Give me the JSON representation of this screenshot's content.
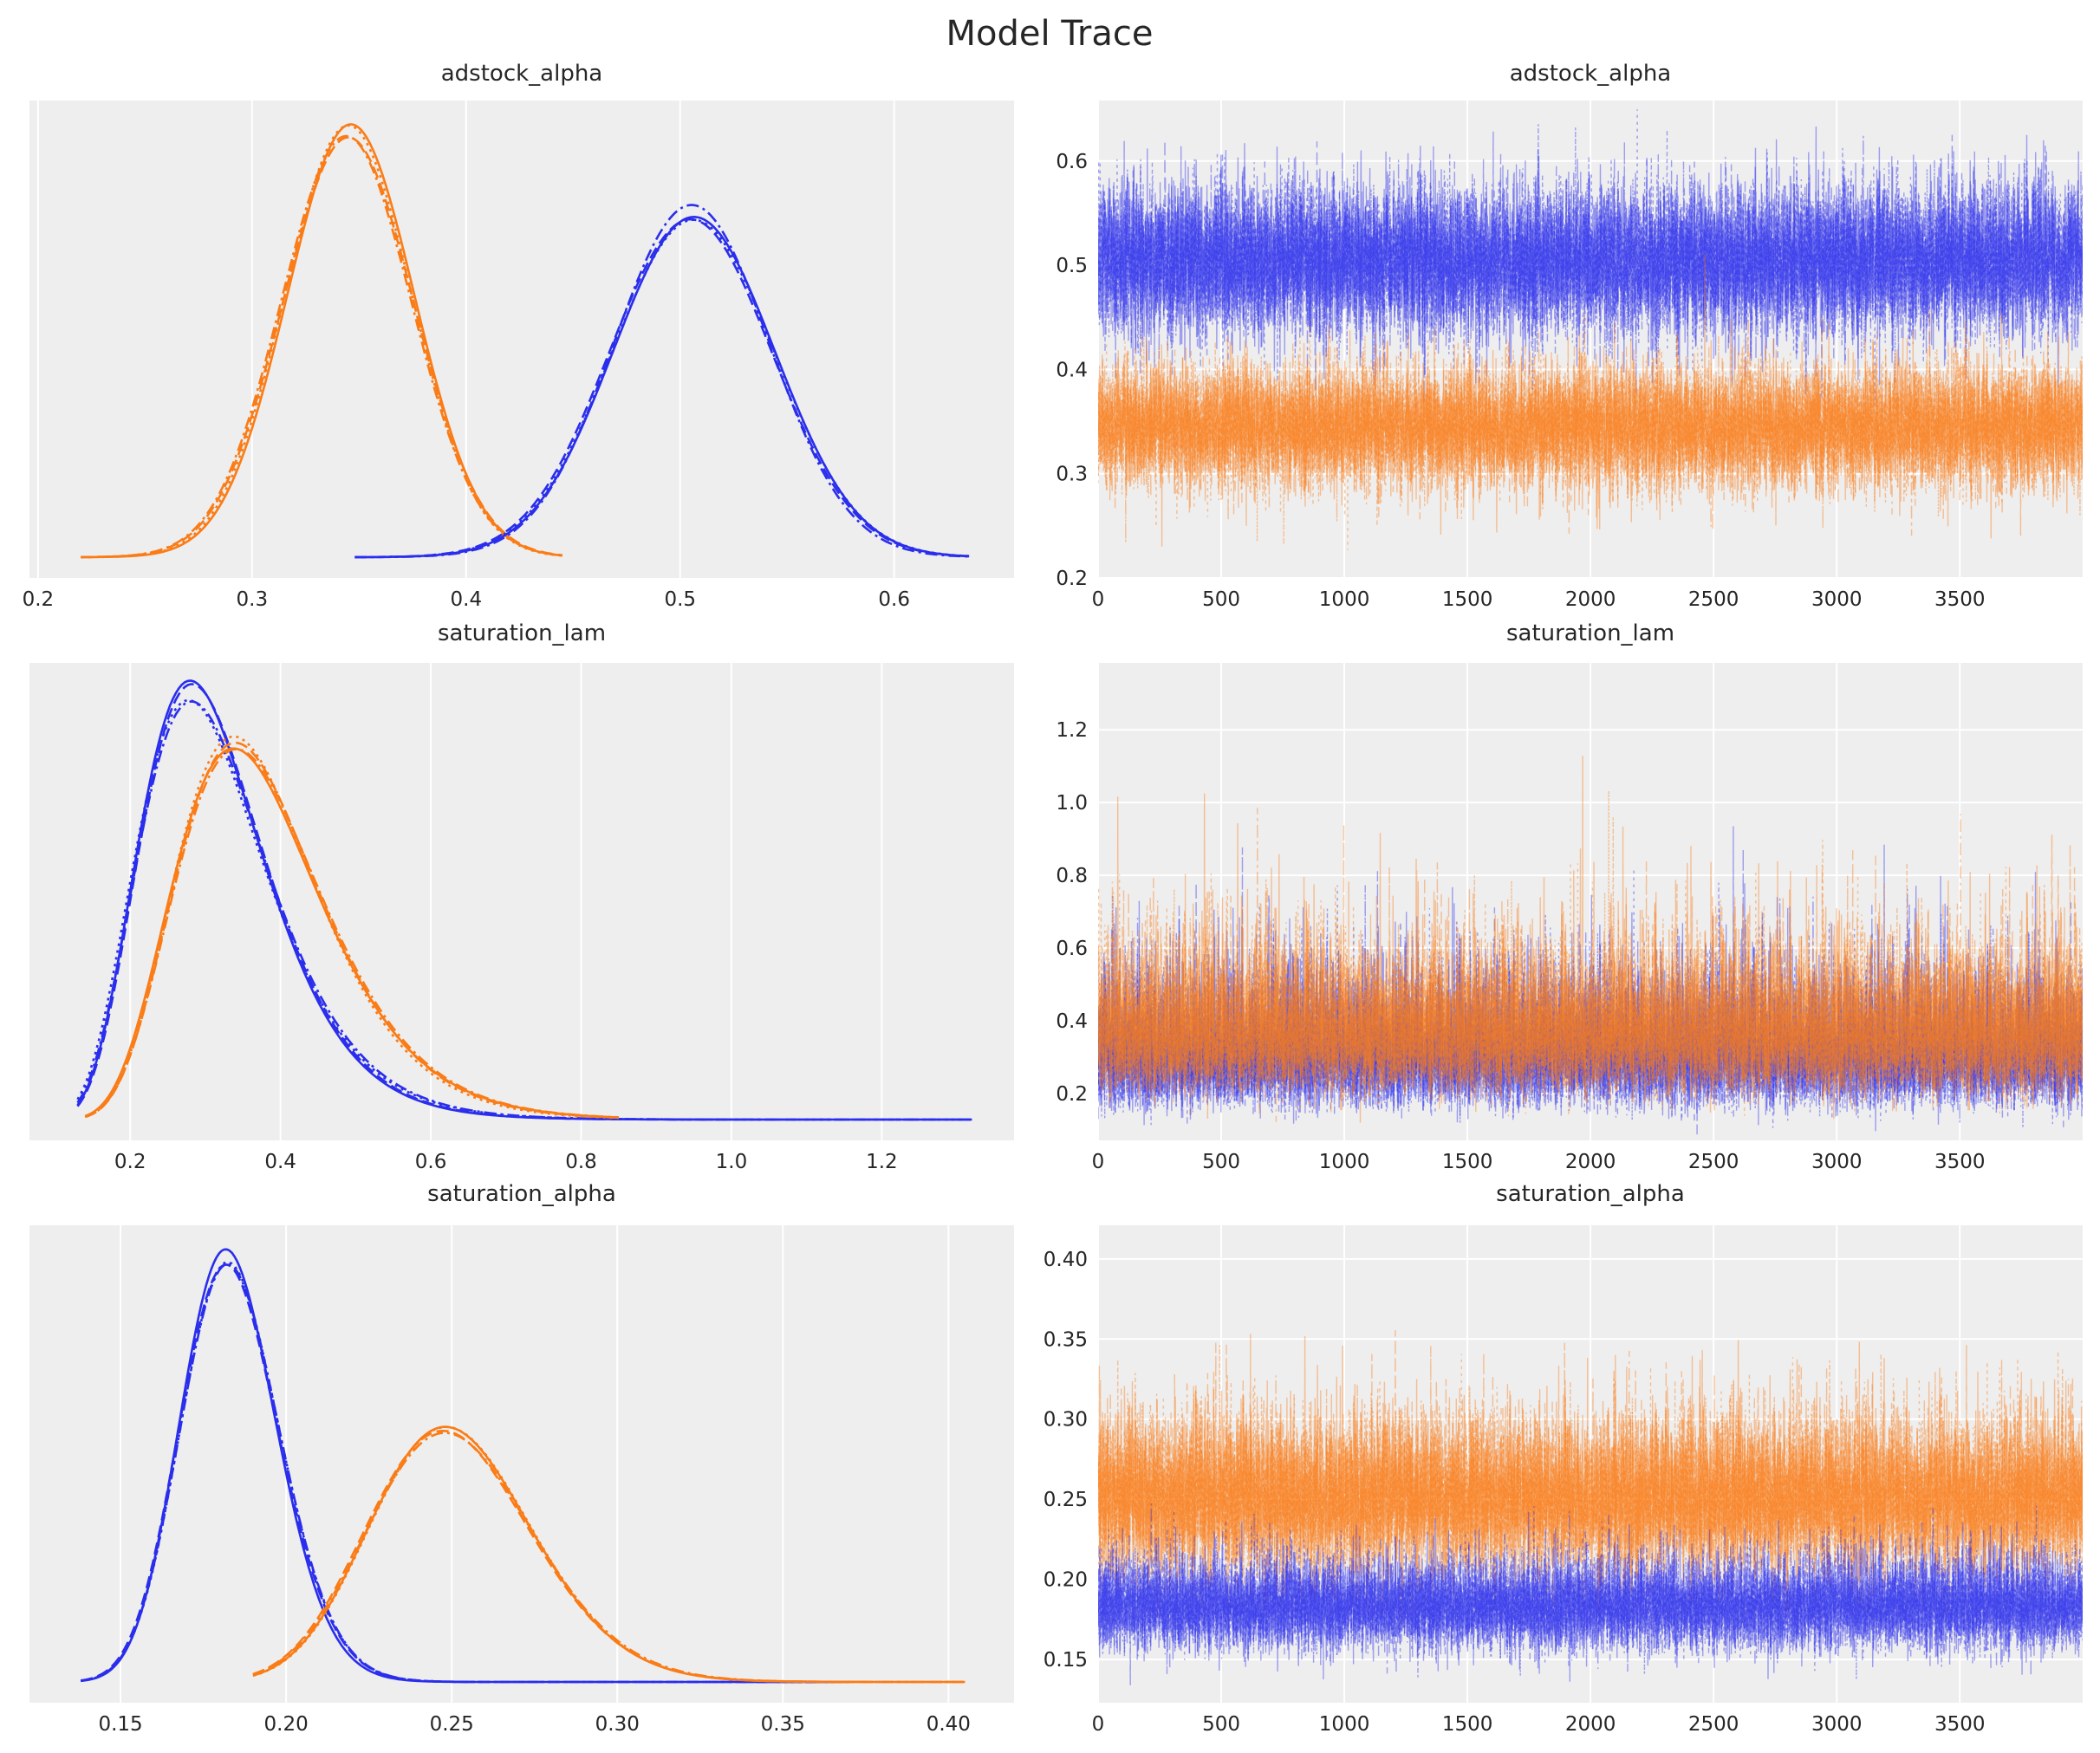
{
  "title": "Model Trace",
  "colors": {
    "blue": "#2a2eec",
    "orange": "#fa7c17",
    "panel_bg": "#eeeeee",
    "grid": "#ffffff"
  },
  "chain_linestyles": [
    "solid",
    "dashed",
    "dotted",
    "dashdot"
  ],
  "chart_data": [
    {
      "type": "line",
      "kind": "kde",
      "title": "adstock_alpha",
      "xlim": [
        0.196,
        0.656
      ],
      "xticks": [
        "0.2",
        "0.3",
        "0.4",
        "0.5",
        "0.6"
      ],
      "grid": "x",
      "series": [
        {
          "color": "orange",
          "dist": "normal",
          "mode": 0.345,
          "sd": 0.03,
          "min": 0.22,
          "max": 0.445
        },
        {
          "color": "blue",
          "dist": "normal",
          "mode": 0.505,
          "sd": 0.037,
          "min": 0.348,
          "max": 0.635
        }
      ]
    },
    {
      "type": "line",
      "kind": "trace",
      "title": "adstock_alpha",
      "xlim": [
        0,
        3999
      ],
      "ylim": [
        0.2,
        0.658
      ],
      "xticks": [
        "0",
        "500",
        "1000",
        "1500",
        "2000",
        "2500",
        "3000",
        "3500"
      ],
      "yticks": [
        "0.2",
        "0.3",
        "0.4",
        "0.5",
        "0.6"
      ],
      "grid": "both",
      "draws": 4000,
      "series": [
        {
          "color": "blue",
          "dist": "normal",
          "mean": 0.505,
          "sd": 0.037
        },
        {
          "color": "orange",
          "dist": "normal",
          "mean": 0.345,
          "sd": 0.03
        }
      ]
    },
    {
      "type": "line",
      "kind": "kde",
      "title": "saturation_lam",
      "xlim": [
        0.066,
        1.376
      ],
      "xticks": [
        "0.2",
        "0.4",
        "0.6",
        "0.8",
        "1.0",
        "1.2"
      ],
      "grid": "x",
      "series": [
        {
          "color": "blue",
          "dist": "lognormal",
          "mode": 0.28,
          "shape": 0.3,
          "min": 0.13,
          "max": 1.32
        },
        {
          "color": "orange",
          "dist": "lognormal",
          "mode": 0.34,
          "shape": 0.28,
          "min": 0.14,
          "max": 0.85
        }
      ]
    },
    {
      "type": "line",
      "kind": "trace",
      "title": "saturation_lam",
      "xlim": [
        0,
        3999
      ],
      "ylim": [
        0.071,
        1.384
      ],
      "xticks": [
        "0",
        "500",
        "1000",
        "1500",
        "2000",
        "2500",
        "3000",
        "3500"
      ],
      "yticks": [
        "0.2",
        "0.4",
        "0.6",
        "0.8",
        "1.0",
        "1.2"
      ],
      "grid": "both",
      "draws": 4000,
      "series": [
        {
          "color": "blue",
          "dist": "lognormal",
          "mode": 0.28,
          "shape": 0.3
        },
        {
          "color": "orange",
          "dist": "lognormal",
          "mode": 0.34,
          "shape": 0.28
        }
      ]
    },
    {
      "type": "line",
      "kind": "kde",
      "title": "saturation_alpha",
      "xlim": [
        0.1225,
        0.4198
      ],
      "xticks": [
        "0.15",
        "0.20",
        "0.25",
        "0.30",
        "0.35",
        "0.40"
      ],
      "grid": "x",
      "series": [
        {
          "color": "blue",
          "dist": "lognormal",
          "mode": 0.182,
          "shape": 0.08,
          "min": 0.138,
          "max": 0.37
        },
        {
          "color": "orange",
          "dist": "lognormal",
          "mode": 0.248,
          "shape": 0.1,
          "min": 0.19,
          "max": 0.405
        }
      ]
    },
    {
      "type": "line",
      "kind": "trace",
      "title": "saturation_alpha",
      "xlim": [
        0,
        3999
      ],
      "ylim": [
        0.123,
        0.421
      ],
      "xticks": [
        "0",
        "500",
        "1000",
        "1500",
        "2000",
        "2500",
        "3000",
        "3500"
      ],
      "yticks": [
        "0.15",
        "0.20",
        "0.25",
        "0.30",
        "0.35",
        "0.40"
      ],
      "grid": "both",
      "draws": 4000,
      "series": [
        {
          "color": "orange",
          "dist": "lognormal",
          "mode": 0.248,
          "shape": 0.1
        },
        {
          "color": "blue",
          "dist": "lognormal",
          "mode": 0.182,
          "shape": 0.08
        }
      ]
    }
  ]
}
